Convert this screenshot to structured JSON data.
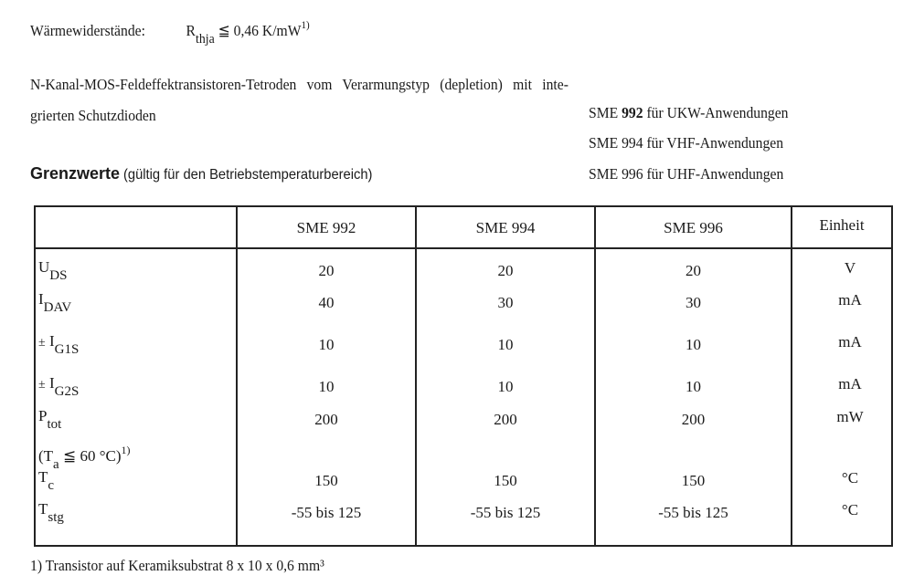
{
  "thermal": {
    "label": "Wärmewiderstände:",
    "symbol": "R",
    "sub": "thja",
    "relation": "≦",
    "value": "0,46 K/mW",
    "footnote_ref": "1)"
  },
  "intro": {
    "line1": "N-Kanal-MOS-Feldeffektransistoren-Tetroden vom Verarmungstyp (depletion) mit inte-",
    "line2": "grierten Schutzdioden",
    "types": [
      {
        "model": "SME",
        "num": "992",
        "text": "für UKW-Anwendungen"
      },
      {
        "model": "SME",
        "num": "994",
        "text": "für VHF-Anwendungen"
      },
      {
        "model": "SME",
        "num": "996",
        "text": "für UHF-Anwendungen"
      }
    ]
  },
  "heading": {
    "title": "Grenzwerte",
    "subtitle": "(gültig für den Betriebstemperaturbereich)"
  },
  "table": {
    "headers": [
      "",
      "SME 992",
      "SME 994",
      "SME 996",
      "Einheit"
    ],
    "rows": [
      {
        "prefix": "",
        "sym": "U",
        "sub": "DS",
        "extra": "",
        "values": [
          "20",
          "20",
          "20"
        ],
        "unit": "V"
      },
      {
        "prefix": "",
        "sym": "I",
        "sub": "DAV",
        "extra": "",
        "values": [
          "40",
          "30",
          "30"
        ],
        "unit": "mA"
      },
      {
        "prefix": "±",
        "sym": "I",
        "sub": "G1S",
        "extra": "",
        "values": [
          "10",
          "10",
          "10"
        ],
        "unit": "mA"
      },
      {
        "prefix": "±",
        "sym": "I",
        "sub": "G2S",
        "extra": "",
        "values": [
          "10",
          "10",
          "10"
        ],
        "unit": "mA"
      },
      {
        "prefix": "",
        "sym": "P",
        "sub": "tot",
        "extra": "(T",
        "extra_sub": "a",
        "extra_rest": " ≦ 60 °C)",
        "extra_sup": "1)",
        "values": [
          "200",
          "200",
          "200"
        ],
        "unit": "mW"
      },
      {
        "prefix": "",
        "sym": "T",
        "sub": "c",
        "extra": "",
        "values": [
          "150",
          "150",
          "150"
        ],
        "unit": "°C"
      },
      {
        "prefix": "",
        "sym": "T",
        "sub": "stg",
        "extra": "",
        "values": [
          "-55 bis 125",
          "-55 bis 125",
          "-55 bis 125"
        ],
        "unit": "°C"
      }
    ]
  },
  "footnote": "1) Transistor auf Keramiksubstrat 8 x 10 x 0,6 mm³"
}
